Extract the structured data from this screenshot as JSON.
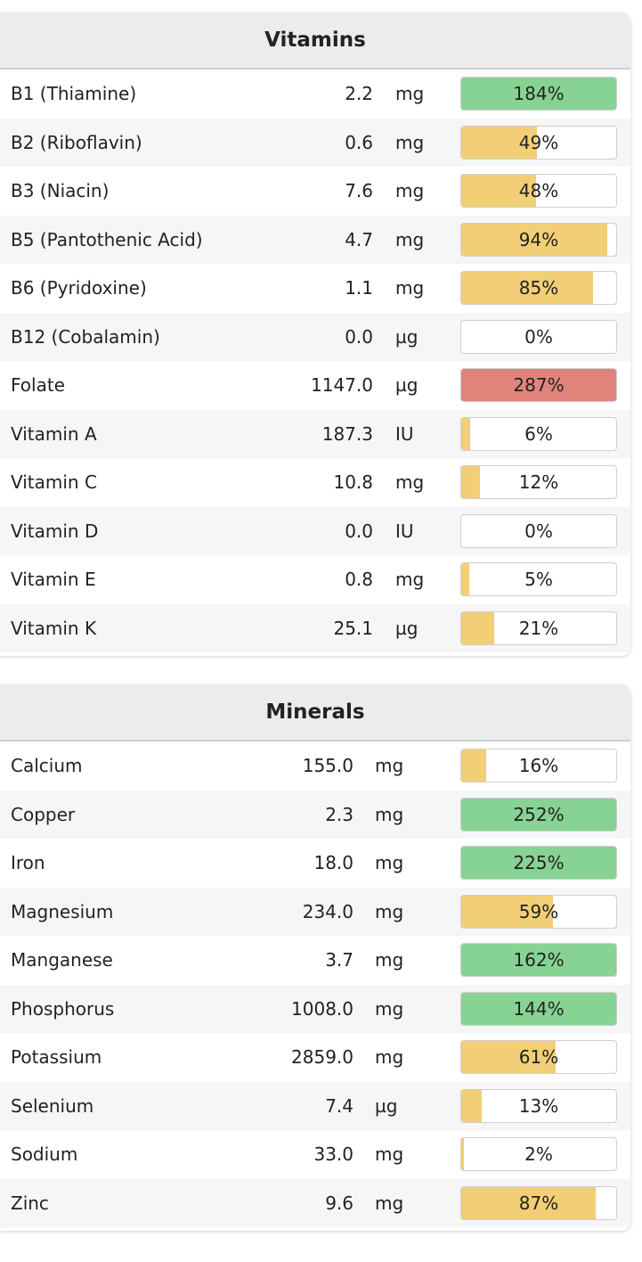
{
  "colors": {
    "low": "#f2cf76",
    "good": "#86d394",
    "high": "#e0847b"
  },
  "vitamins": {
    "title": "Vitamins",
    "rows": [
      {
        "name": "B1 (Thiamine)",
        "amount": "2.2",
        "unit": "mg",
        "pct": "184%",
        "fill": 100,
        "status": "good"
      },
      {
        "name": "B2 (Riboflavin)",
        "amount": "0.6",
        "unit": "mg",
        "pct": "49%",
        "fill": 49,
        "status": "low"
      },
      {
        "name": "B3 (Niacin)",
        "amount": "7.6",
        "unit": "mg",
        "pct": "48%",
        "fill": 48,
        "status": "low"
      },
      {
        "name": "B5 (Pantothenic Acid)",
        "amount": "4.7",
        "unit": "mg",
        "pct": "94%",
        "fill": 94,
        "status": "low"
      },
      {
        "name": "B6 (Pyridoxine)",
        "amount": "1.1",
        "unit": "mg",
        "pct": "85%",
        "fill": 85,
        "status": "low"
      },
      {
        "name": "B12 (Cobalamin)",
        "amount": "0.0",
        "unit": "µg",
        "pct": "0%",
        "fill": 0,
        "status": "low"
      },
      {
        "name": "Folate",
        "amount": "1147.0",
        "unit": "µg",
        "pct": "287%",
        "fill": 100,
        "status": "high"
      },
      {
        "name": "Vitamin A",
        "amount": "187.3",
        "unit": "IU",
        "pct": "6%",
        "fill": 6,
        "status": "low"
      },
      {
        "name": "Vitamin C",
        "amount": "10.8",
        "unit": "mg",
        "pct": "12%",
        "fill": 12,
        "status": "low"
      },
      {
        "name": "Vitamin D",
        "amount": "0.0",
        "unit": "IU",
        "pct": "0%",
        "fill": 0,
        "status": "low"
      },
      {
        "name": "Vitamin E",
        "amount": "0.8",
        "unit": "mg",
        "pct": "5%",
        "fill": 5,
        "status": "low"
      },
      {
        "name": "Vitamin K",
        "amount": "25.1",
        "unit": "µg",
        "pct": "21%",
        "fill": 21,
        "status": "low"
      }
    ]
  },
  "minerals": {
    "title": "Minerals",
    "rows": [
      {
        "name": "Calcium",
        "amount": "155.0",
        "unit": "mg",
        "pct": "16%",
        "fill": 16,
        "status": "low"
      },
      {
        "name": "Copper",
        "amount": "2.3",
        "unit": "mg",
        "pct": "252%",
        "fill": 100,
        "status": "good"
      },
      {
        "name": "Iron",
        "amount": "18.0",
        "unit": "mg",
        "pct": "225%",
        "fill": 100,
        "status": "good"
      },
      {
        "name": "Magnesium",
        "amount": "234.0",
        "unit": "mg",
        "pct": "59%",
        "fill": 59,
        "status": "low"
      },
      {
        "name": "Manganese",
        "amount": "3.7",
        "unit": "mg",
        "pct": "162%",
        "fill": 100,
        "status": "good"
      },
      {
        "name": "Phosphorus",
        "amount": "1008.0",
        "unit": "mg",
        "pct": "144%",
        "fill": 100,
        "status": "good"
      },
      {
        "name": "Potassium",
        "amount": "2859.0",
        "unit": "mg",
        "pct": "61%",
        "fill": 61,
        "status": "low"
      },
      {
        "name": "Selenium",
        "amount": "7.4",
        "unit": "µg",
        "pct": "13%",
        "fill": 13,
        "status": "low"
      },
      {
        "name": "Sodium",
        "amount": "33.0",
        "unit": "mg",
        "pct": "2%",
        "fill": 2,
        "status": "low"
      },
      {
        "name": "Zinc",
        "amount": "9.6",
        "unit": "mg",
        "pct": "87%",
        "fill": 87,
        "status": "low"
      }
    ]
  }
}
